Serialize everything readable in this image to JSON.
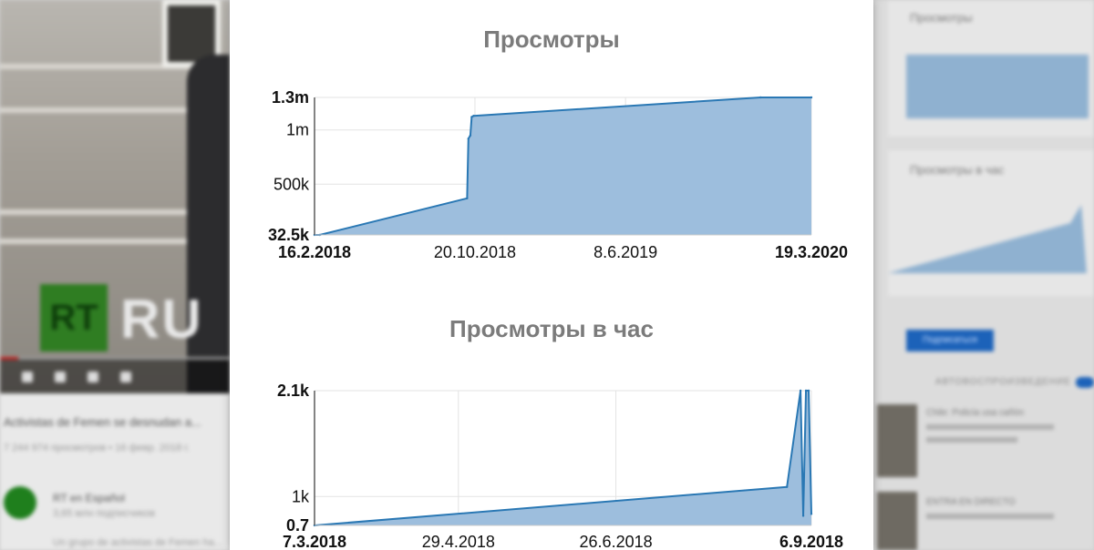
{
  "background": {
    "video_title": "Activistas de Femen se desnudan a...",
    "video_meta": "7 244 974 просмотров • 16 февр. 2018 г.",
    "channel_name": "RT en Español",
    "channel_subs": "3,65 млн подписчиков",
    "channel_desc": "Un grupo de activistas de Femen ha...",
    "logo_letters": "RT",
    "logo_text": "RU",
    "sidebar_card1_title": "Просмотры",
    "sidebar_card2_title": "Просмотры в час",
    "subscribe_label": "Подписаться",
    "autoplay_label": "АВТОВОСПРОИЗВЕДЕНИЕ",
    "rec1_title": "Chile: Policía usa cañón",
    "rec2_title": "ENTRA EN DIRECTO"
  },
  "chart_data": [
    {
      "type": "area",
      "title": "Просмотры",
      "xlabel": "",
      "ylabel": "",
      "x": [
        "16.2.2018",
        "24.2.2018",
        "8.10.2018",
        "10.10.2018",
        "13.10.2018",
        "15.10.2018",
        "18.10.2018",
        "1.1.2020",
        "19.3.2020"
      ],
      "values": [
        32500,
        32500,
        370000,
        920000,
        950000,
        1120000,
        1130000,
        1300000,
        1300000
      ],
      "ylim": [
        32500,
        1300000
      ],
      "xlim": [
        "16.2.2018",
        "19.3.2020"
      ],
      "y_ticks": [
        {
          "value": 32500,
          "label": "32.5k",
          "bold": true
        },
        {
          "value": 500000,
          "label": "500k",
          "bold": false
        },
        {
          "value": 1000000,
          "label": "1m",
          "bold": false
        },
        {
          "value": 1300000,
          "label": "1.3m",
          "bold": true
        }
      ],
      "x_ticks": [
        {
          "value": "16.2.2018",
          "label": "16.2.2018",
          "bold": true
        },
        {
          "value": "20.10.2018",
          "label": "20.10.2018",
          "bold": false
        },
        {
          "value": "8.6.2019",
          "label": "8.6.2019",
          "bold": false
        },
        {
          "value": "19.3.2020",
          "label": "19.3.2020",
          "bold": true
        }
      ],
      "grid": true,
      "fill_color": "#9dbedd",
      "line_color": "#2a78b4"
    },
    {
      "type": "area",
      "title": "Просмотры в час",
      "xlabel": "",
      "ylabel": "",
      "x": [
        "7.3.2018",
        "28.8.2018",
        "2.9.2018",
        "3.9.2018",
        "4.9.2018",
        "5.9.2018",
        "6.9.2018"
      ],
      "values": [
        0.7,
        1.1,
        2.1,
        0.8,
        2.1,
        2.1,
        0.82
      ],
      "ylim": [
        0.7,
        2.1
      ],
      "xlim": [
        "7.3.2018",
        "6.9.2018"
      ],
      "y_ticks": [
        {
          "value": 0.7,
          "label": "0.7",
          "bold": true
        },
        {
          "value": 1.0,
          "label": "1k",
          "bold": false
        },
        {
          "value": 2.1,
          "label": "2.1k",
          "bold": true
        }
      ],
      "x_ticks": [
        {
          "value": "7.3.2018",
          "label": "7.3.2018",
          "bold": true
        },
        {
          "value": "29.4.2018",
          "label": "29.4.2018",
          "bold": false
        },
        {
          "value": "26.6.2018",
          "label": "26.6.2018",
          "bold": false
        },
        {
          "value": "6.9.2018",
          "label": "6.9.2018",
          "bold": true
        }
      ],
      "grid": true,
      "fill_color": "#9dbedd",
      "line_color": "#2a78b4"
    }
  ]
}
